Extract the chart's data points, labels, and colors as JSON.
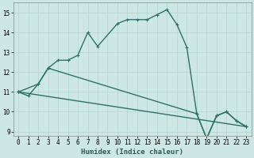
{
  "xlabel": "Humidex (Indice chaleur)",
  "background_color": "#cde8e4",
  "grid_color": "#b8d8d4",
  "line_color": "#2d7068",
  "xlim": [
    -0.5,
    23.5
  ],
  "ylim": [
    8.8,
    15.5
  ],
  "yticks": [
    9,
    10,
    11,
    12,
    13,
    14,
    15
  ],
  "xticks": [
    0,
    1,
    2,
    3,
    4,
    5,
    6,
    7,
    8,
    9,
    10,
    11,
    12,
    13,
    14,
    15,
    16,
    17,
    18,
    19,
    20,
    21,
    22,
    23
  ],
  "series1_x": [
    0,
    1,
    2,
    3,
    4,
    5,
    6,
    7,
    8,
    10,
    11,
    12,
    13,
    14,
    15,
    16,
    17,
    18,
    19,
    20,
    21,
    22,
    23
  ],
  "series1_y": [
    11.0,
    10.8,
    11.4,
    12.2,
    12.6,
    12.6,
    12.85,
    14.0,
    13.3,
    14.45,
    14.65,
    14.65,
    14.65,
    14.9,
    15.15,
    14.4,
    13.25,
    9.9,
    8.65,
    9.8,
    10.0,
    9.55,
    9.25
  ],
  "series2_x": [
    0,
    2,
    3,
    18,
    19,
    20,
    21,
    22,
    23
  ],
  "series2_y": [
    11.0,
    11.4,
    12.2,
    9.9,
    8.65,
    9.8,
    10.0,
    9.55,
    9.25
  ],
  "series3_x": [
    0,
    23
  ],
  "series3_y": [
    11.0,
    9.25
  ],
  "marker_size": 3.5,
  "linewidth": 1.0
}
